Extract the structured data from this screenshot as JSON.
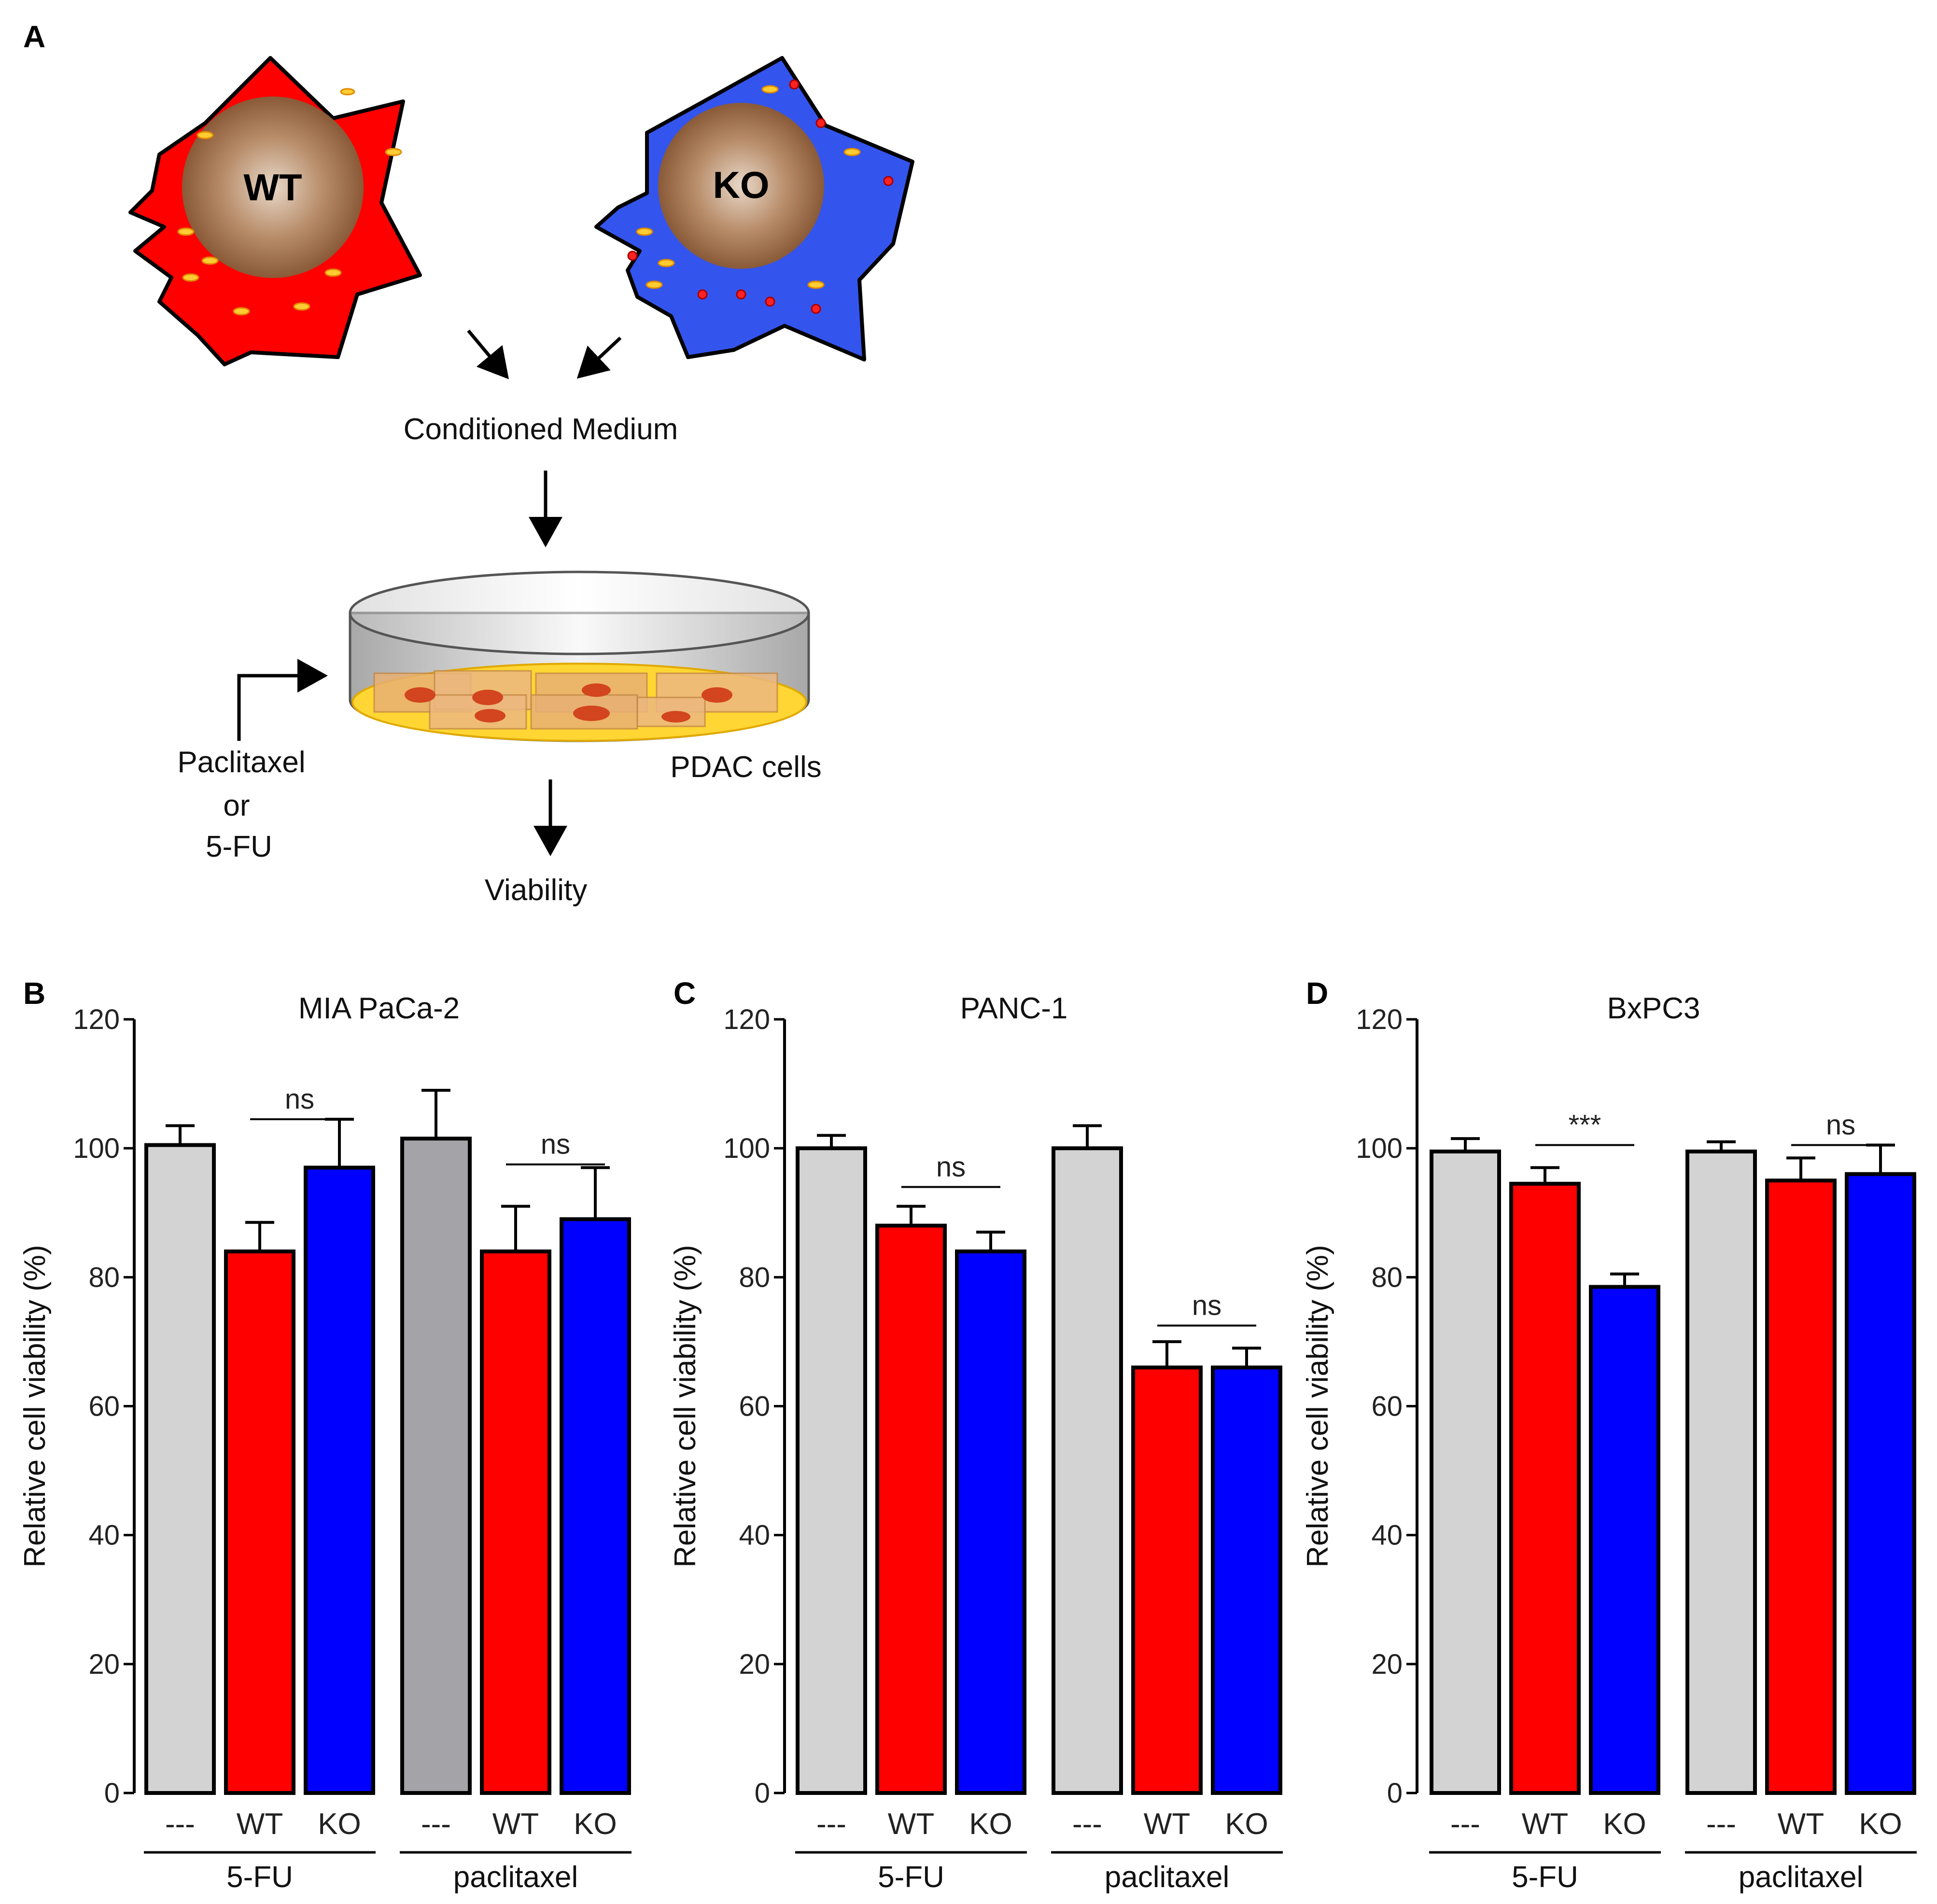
{
  "panel_a": {
    "letter": "A",
    "wt_cell_label": "WT",
    "ko_cell_label": "KO",
    "conditioned_medium": "Conditioned Medium",
    "drug_line1": "Paclitaxel",
    "drug_line2": "or",
    "drug_line3": "5-FU",
    "pdac_cells": "PDAC cells",
    "viability": "Viability",
    "colors": {
      "wt_cell": "#ff0000",
      "ko_cell": "#3355ee",
      "nucleus": "#9c6b46",
      "medium": "#ffd633"
    }
  },
  "colors": {
    "control": "#d3d3d3",
    "control_dark": "#a3a3a8",
    "wt": "#ff0000",
    "ko": "#0000ff"
  },
  "chart_data": [
    {
      "type": "bar",
      "panel": "B",
      "title": "MIA PaCa-2",
      "ylabel": "Relative cell viability (%)",
      "ylim": [
        0,
        120
      ],
      "yticks": [
        "0",
        "20",
        "40",
        "60",
        "80",
        "100",
        "120"
      ],
      "categories": [
        "---",
        "WT",
        "KO",
        "---",
        "WT",
        "KO"
      ],
      "groups": [
        "5-FU",
        "paclitaxel"
      ],
      "values": [
        100.5,
        84,
        97,
        101.5,
        84,
        89
      ],
      "errors": [
        3,
        4.5,
        7.5,
        7.5,
        7,
        8
      ],
      "bar_colors": [
        "control",
        "wt",
        "ko",
        "control_dark",
        "wt",
        "ko"
      ],
      "significance": [
        {
          "from": 1,
          "to": 2,
          "label": "ns",
          "y": 104.5
        },
        {
          "from": 4,
          "to": 5,
          "label": "ns",
          "y": 97.5
        }
      ]
    },
    {
      "type": "bar",
      "panel": "C",
      "title": "PANC-1",
      "ylabel": "Relative cell viability (%)",
      "ylim": [
        0,
        120
      ],
      "yticks": [
        "0",
        "20",
        "40",
        "60",
        "80",
        "100",
        "120"
      ],
      "categories": [
        "---",
        "WT",
        "KO",
        "---",
        "WT",
        "KO"
      ],
      "groups": [
        "5-FU",
        "paclitaxel"
      ],
      "values": [
        100,
        88,
        84,
        100,
        66,
        66
      ],
      "errors": [
        2,
        3,
        3,
        3.5,
        4,
        3
      ],
      "bar_colors": [
        "control",
        "wt",
        "ko",
        "control",
        "wt",
        "ko"
      ],
      "significance": [
        {
          "from": 1,
          "to": 2,
          "label": "ns",
          "y": 94
        },
        {
          "from": 4,
          "to": 5,
          "label": "ns",
          "y": 72.5
        }
      ]
    },
    {
      "type": "bar",
      "panel": "D",
      "title": "BxPC3",
      "ylabel": "Relative cell viability (%)",
      "ylim": [
        0,
        120
      ],
      "yticks": [
        "0",
        "20",
        "40",
        "60",
        "80",
        "100",
        "120"
      ],
      "categories": [
        "---",
        "WT",
        "KO",
        "---",
        "WT",
        "KO"
      ],
      "groups": [
        "5-FU",
        "paclitaxel"
      ],
      "values": [
        99.5,
        94.5,
        78.5,
        99.5,
        95,
        96
      ],
      "errors": [
        2,
        2.5,
        2,
        1.5,
        3.5,
        4.5
      ],
      "bar_colors": [
        "control",
        "wt",
        "ko",
        "control",
        "wt",
        "ko"
      ],
      "significance": [
        {
          "from": 1,
          "to": 2,
          "label": "***",
          "y": 100.5
        },
        {
          "from": 4,
          "to": 5,
          "label": "ns",
          "y": 100.5
        }
      ]
    }
  ]
}
